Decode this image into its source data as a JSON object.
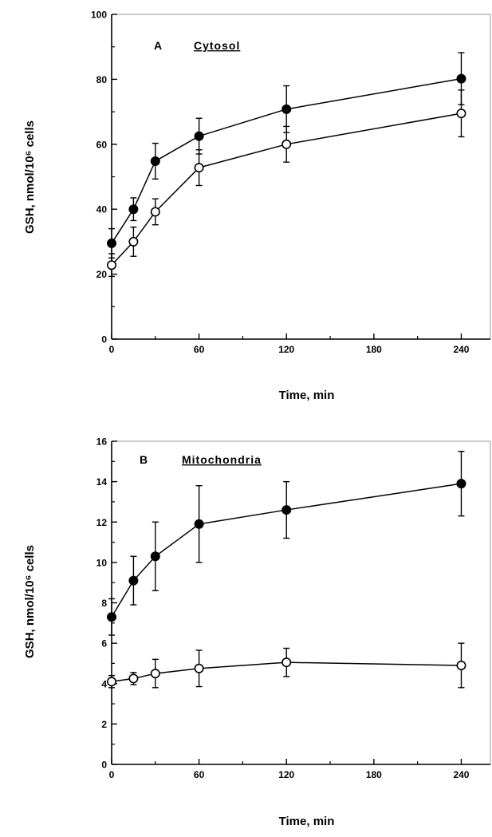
{
  "chart_data": [
    {
      "type": "line",
      "panel_letter": "A",
      "title": "Cytosol",
      "xlabel": "Time,  min",
      "ylabel": "GSH,  nmol/10⁶ cells",
      "xlim": [
        0,
        260
      ],
      "ylim": [
        0,
        100
      ],
      "xticks": [
        0,
        60,
        120,
        180,
        240
      ],
      "yticks": [
        0,
        20,
        40,
        60,
        80,
        100
      ],
      "grid": false,
      "series": [
        {
          "marker": "filled-circle",
          "x": [
            0,
            15,
            30,
            60,
            120,
            240
          ],
          "y": [
            29.5,
            40,
            54.8,
            62.5,
            70.8,
            80.2
          ],
          "err": [
            4.5,
            3.5,
            5.5,
            5.5,
            7.2,
            8
          ]
        },
        {
          "marker": "open-circle",
          "x": [
            0,
            15,
            30,
            60,
            120,
            240
          ],
          "y": [
            22.8,
            30,
            39.2,
            52.8,
            60,
            69.5
          ],
          "err": [
            3.5,
            4.5,
            4,
            5.5,
            5.5,
            7.2
          ]
        }
      ]
    },
    {
      "type": "line",
      "panel_letter": "B",
      "title": "Mitochondria",
      "xlabel": "Time,  min",
      "ylabel": "GSH,  nmol/10⁶ cells",
      "xlim": [
        0,
        260
      ],
      "ylim": [
        0,
        16
      ],
      "xticks": [
        0,
        60,
        120,
        180,
        240
      ],
      "yticks": [
        0,
        2,
        4,
        6,
        8,
        10,
        12,
        14,
        16
      ],
      "grid": false,
      "series": [
        {
          "marker": "filled-circle",
          "x": [
            0,
            15,
            30,
            60,
            120,
            240
          ],
          "y": [
            7.3,
            9.1,
            10.3,
            11.9,
            12.6,
            13.9
          ],
          "err": [
            0.9,
            1.2,
            1.7,
            1.9,
            1.4,
            1.6
          ]
        },
        {
          "marker": "open-circle",
          "x": [
            0,
            15,
            30,
            60,
            120,
            240
          ],
          "y": [
            4.1,
            4.25,
            4.5,
            4.75,
            5.05,
            4.9
          ],
          "err": [
            0.3,
            0.3,
            0.7,
            0.9,
            0.7,
            1.1
          ]
        }
      ]
    }
  ]
}
